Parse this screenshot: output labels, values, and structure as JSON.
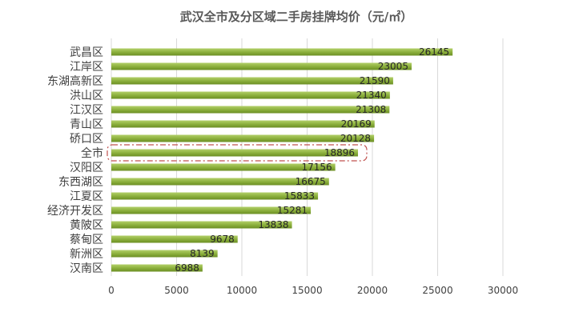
{
  "chart_data": {
    "type": "bar",
    "orientation": "horizontal",
    "title": "武汉全市及分区域二手房挂牌均价（元/㎡）",
    "categories": [
      "武昌区",
      "江岸区",
      "东湖高新区",
      "洪山区",
      "江汉区",
      "青山区",
      "硚口区",
      "全市",
      "汉阳区",
      "东西湖区",
      "江夏区",
      "经济开发区",
      "黄陂区",
      "蔡甸区",
      "新洲区",
      "汉南区"
    ],
    "values": [
      26145,
      23005,
      21590,
      21340,
      21308,
      20169,
      20128,
      18896,
      17156,
      16675,
      15833,
      15281,
      13838,
      9678,
      8139,
      6988
    ],
    "data_labels": [
      "26145",
      "23005",
      "21590",
      "21340",
      "21308",
      "20169",
      "20128",
      "18896",
      "17156",
      "16675",
      "15833",
      "15281",
      "13838",
      "9678",
      "8139",
      "6988"
    ],
    "xlim": [
      0,
      30000
    ],
    "xticks": [
      0,
      5000,
      10000,
      15000,
      20000,
      25000,
      30000
    ],
    "xtick_labels": [
      "0",
      "5000",
      "10000",
      "15000",
      "20000",
      "25000",
      "30000"
    ],
    "highlighted_category": "全市",
    "grid": "vertical",
    "legend": "none",
    "colors": {
      "bar": "#8db13e",
      "bar_dark": "#6b8e23",
      "highlight": "#c0504d",
      "grid": "#d9d9d9"
    }
  }
}
